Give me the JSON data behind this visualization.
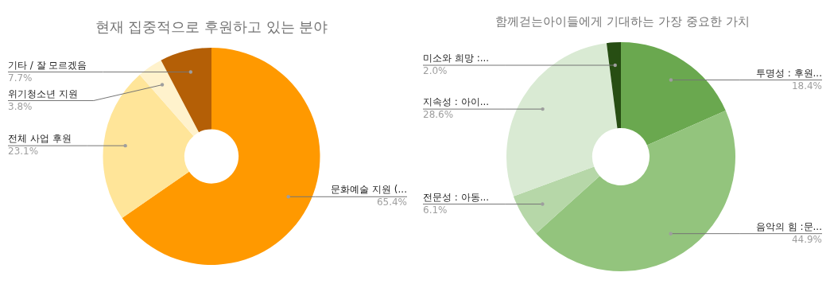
{
  "chart_data": [
    {
      "type": "donut",
      "title": "현재 집중적으로 후원하고 있는 분야",
      "categories": [
        "문화예술 지원 (...",
        "전체 사업 후원",
        "위기청소년 지원",
        "기타 / 잘 모르겠음"
      ],
      "values": [
        65.4,
        23.1,
        3.8,
        7.7
      ],
      "colors": [
        "#ff9900",
        "#ffe599",
        "#fff2cc",
        "#b45f06"
      ],
      "value_labels": [
        "65.4%",
        "23.1%",
        "3.8%",
        "7.7%"
      ],
      "legend": false
    },
    {
      "type": "donut",
      "title": "함께걷는아이들에게 기대하는 가장 중요한 가치",
      "categories": [
        "투명성 : 후원...",
        "음악의 힘 :문...",
        "전문성 : 아동...",
        "지속성 : 아이...",
        "미소와 희망 :..."
      ],
      "values": [
        18.4,
        44.9,
        6.1,
        28.6,
        2.0
      ],
      "colors": [
        "#6aa84f",
        "#93c47d",
        "#b6d7a8",
        "#d9ead3",
        "#274e13"
      ],
      "value_labels": [
        "18.4%",
        "44.9%",
        "6.1%",
        "28.6%",
        "2.0%"
      ],
      "legend": false
    }
  ]
}
